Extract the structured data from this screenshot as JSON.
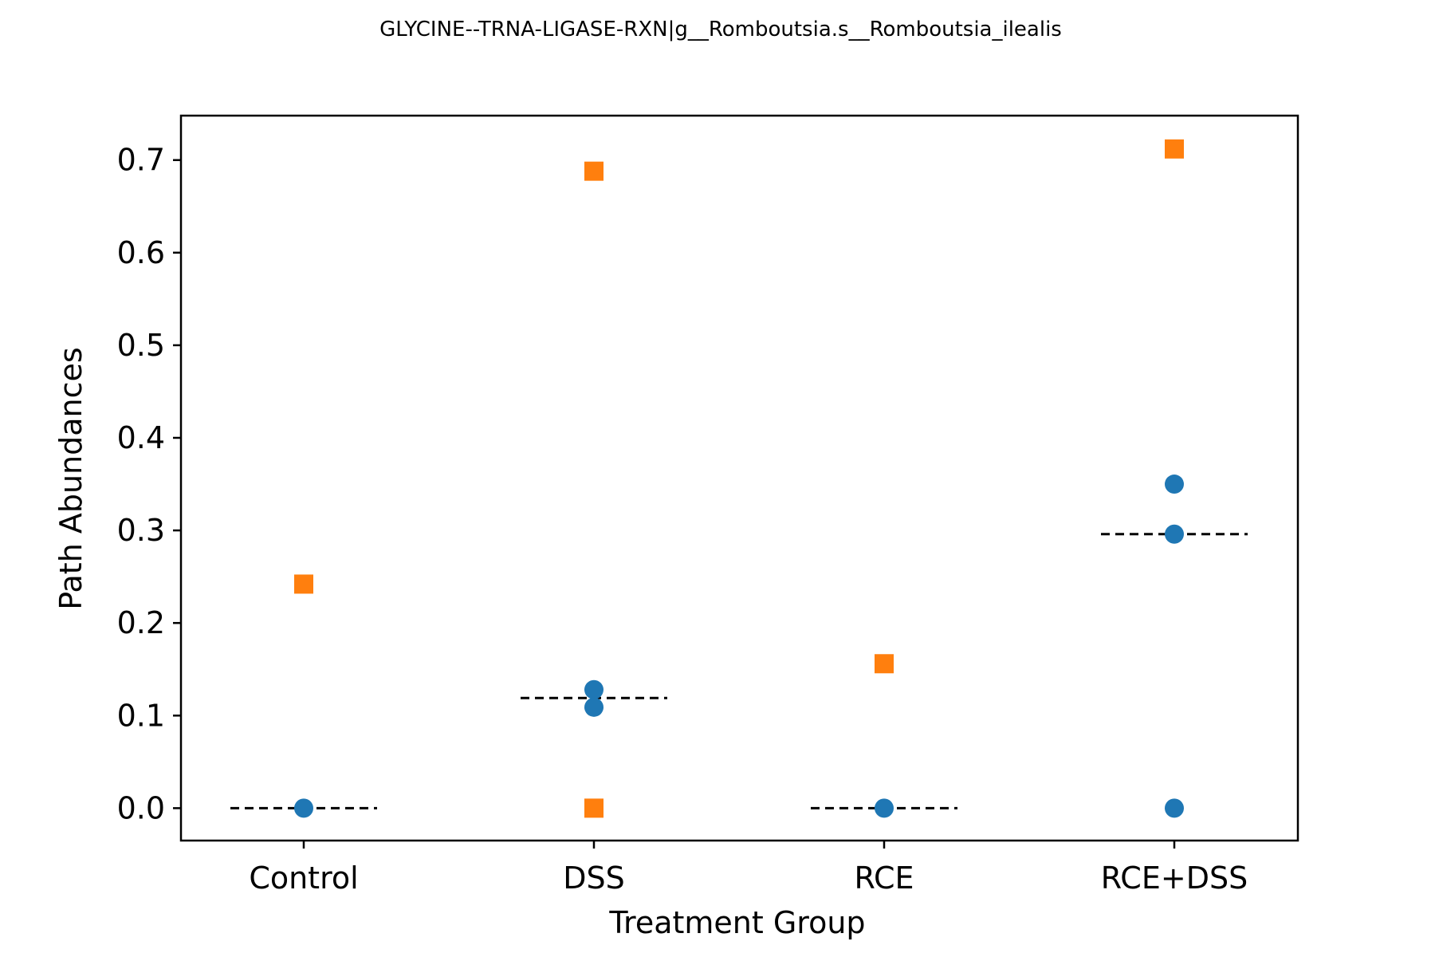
{
  "chart_data": {
    "type": "scatter",
    "title": "GLYCINE--TRNA-LIGASE-RXN|g__Romboutsia.s__Romboutsia_ilealis",
    "xlabel": "Treatment Group",
    "ylabel": "Path Abundances",
    "categories": [
      "Control",
      "DSS",
      "RCE",
      "RCE+DSS"
    ],
    "ylim": [
      -0.035,
      0.748
    ],
    "yticks": [
      0.0,
      0.1,
      0.2,
      0.3,
      0.4,
      0.5,
      0.6,
      0.7
    ],
    "ytick_labels": [
      "0.0",
      "0.1",
      "0.2",
      "0.3",
      "0.4",
      "0.5",
      "0.6",
      "0.7"
    ],
    "grid": false,
    "series": [
      {
        "marker": "circle",
        "color": "#1f77b4",
        "points": [
          {
            "category": "Control",
            "y": 0.0
          },
          {
            "category": "DSS",
            "y": 0.128
          },
          {
            "category": "DSS",
            "y": 0.109
          },
          {
            "category": "RCE",
            "y": 0.0
          },
          {
            "category": "RCE+DSS",
            "y": 0.35
          },
          {
            "category": "RCE+DSS",
            "y": 0.296
          },
          {
            "category": "RCE+DSS",
            "y": 0.0
          }
        ]
      },
      {
        "marker": "square",
        "color": "#ff7f0e",
        "points": [
          {
            "category": "Control",
            "y": 0.242
          },
          {
            "category": "DSS",
            "y": 0.688
          },
          {
            "category": "DSS",
            "y": 0.0
          },
          {
            "category": "RCE",
            "y": 0.156
          },
          {
            "category": "RCE+DSS",
            "y": 0.712
          }
        ]
      }
    ],
    "medians": [
      {
        "category": "Control",
        "y": 0.0
      },
      {
        "category": "DSS",
        "y": 0.119
      },
      {
        "category": "RCE",
        "y": 0.0
      },
      {
        "category": "RCE+DSS",
        "y": 0.296
      }
    ],
    "median_line_color": "#000000"
  }
}
